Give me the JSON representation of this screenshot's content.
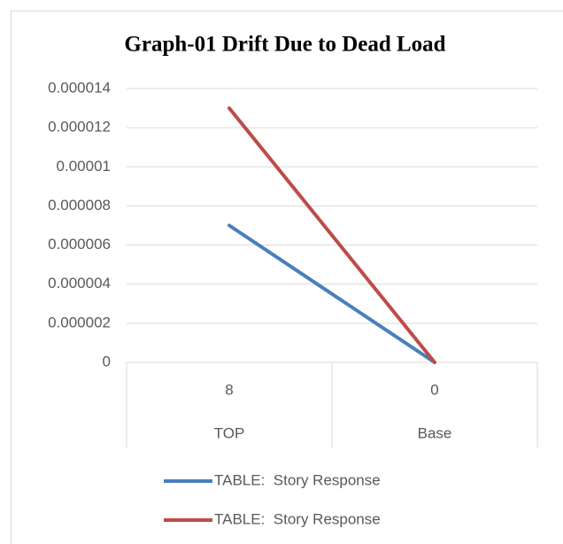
{
  "chart_data": {
    "type": "line",
    "title": "Graph-01 Drift Due to Dead Load",
    "categories": [
      "8",
      "0"
    ],
    "category_groups": [
      "TOP",
      "Base"
    ],
    "series": [
      {
        "name": "TABLE:  Story Response",
        "color": "#4a7ebb",
        "values": [
          7e-06,
          0
        ]
      },
      {
        "name": "TABLE:  Story Response",
        "color": "#be4b48",
        "values": [
          1.3e-05,
          0
        ]
      }
    ],
    "ylim": [
      0,
      1.4e-05
    ],
    "yticks": [
      0,
      2e-06,
      4e-06,
      6e-06,
      8e-06,
      1e-05,
      1.2e-05,
      1.4e-05
    ],
    "grid": true,
    "legend": "bottom"
  }
}
